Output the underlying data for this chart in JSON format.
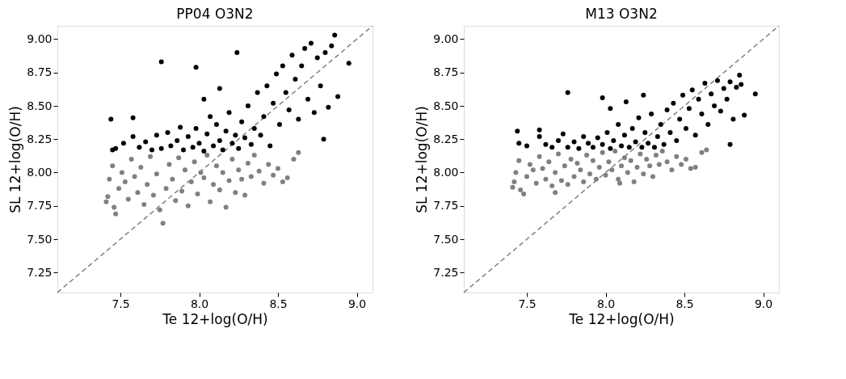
{
  "chart_data": [
    {
      "type": "scatter",
      "title": "PP04 O3N2",
      "xlabel": "Te 12+log(O/H)",
      "ylabel": "SL 12+log(O/H)",
      "marker": "circle",
      "xlim": [
        7.1,
        9.1
      ],
      "ylim": [
        7.1,
        9.1
      ],
      "xticks": [
        {
          "value": 7.5,
          "label": "7.5"
        },
        {
          "value": 8,
          "label": "8.0"
        },
        {
          "value": 8.5,
          "label": "8.5"
        },
        {
          "value": 9,
          "label": "9.0"
        }
      ],
      "yticks": [
        7.25,
        {
          "value": 7.5,
          "label": "7.50"
        },
        7.75,
        {
          "value": 8,
          "label": "8.00"
        },
        8.25,
        {
          "value": 8.5,
          "label": "8.50"
        },
        8.75,
        {
          "value": 9,
          "label": "9.00"
        }
      ],
      "series": [
        {
          "type": "line",
          "color": "#808080",
          "line_style": "dashed",
          "marker": "none",
          "x": [
            7.1,
            9.1
          ],
          "values": [
            7.1,
            9.1
          ]
        },
        {
          "color": "#808080",
          "x": [
            7.41,
            7.42,
            7.43,
            7.45,
            7.46,
            7.47,
            7.49,
            7.51,
            7.53,
            7.55,
            7.57,
            7.59,
            7.61,
            7.63,
            7.65,
            7.67,
            7.69,
            7.71,
            7.73,
            7.75,
            7.77,
            7.79,
            7.81,
            7.83,
            7.85,
            7.87,
            7.89,
            7.91,
            7.93,
            7.95,
            7.97,
            7.99,
            8.01,
            8.03,
            8.05,
            8.07,
            8.09,
            8.11,
            8.13,
            8.15,
            8.17,
            8.19,
            8.21,
            8.23,
            8.25,
            8.27,
            8.29,
            8.31,
            8.33,
            8.35,
            8.38,
            8.41,
            8.44,
            8.47,
            8.5,
            8.53,
            8.56,
            8.6,
            8.63
          ],
          "values": [
            7.78,
            7.82,
            7.95,
            8.05,
            7.74,
            7.69,
            7.88,
            8.0,
            7.93,
            7.8,
            8.1,
            7.97,
            7.85,
            8.04,
            7.76,
            7.91,
            8.12,
            7.83,
            7.99,
            7.72,
            7.62,
            7.88,
            8.06,
            7.95,
            7.79,
            8.11,
            7.86,
            8.02,
            7.75,
            7.93,
            8.08,
            7.84,
            8.0,
            7.96,
            8.13,
            7.78,
            7.91,
            8.05,
            7.87,
            8.0,
            7.74,
            7.94,
            8.1,
            7.85,
            8.02,
            7.95,
            7.83,
            8.07,
            7.97,
            8.13,
            8.01,
            7.92,
            8.06,
            7.98,
            8.03,
            7.93,
            7.96,
            8.1,
            8.15
          ]
        },
        {
          "color": "#000000",
          "x": [
            7.45,
            7.47,
            7.52,
            7.58,
            7.62,
            7.66,
            7.7,
            7.73,
            7.76,
            7.8,
            7.82,
            7.86,
            7.88,
            7.9,
            7.93,
            7.96,
            7.98,
            8.0,
            8.03,
            8.05,
            8.07,
            8.09,
            8.11,
            8.13,
            8.15,
            8.17,
            8.19,
            8.21,
            8.23,
            8.25,
            8.27,
            8.29,
            8.31,
            8.33,
            8.35,
            8.37,
            8.39,
            8.41,
            8.43,
            8.45,
            8.47,
            8.49,
            8.51,
            8.53,
            8.55,
            8.57,
            8.59,
            8.61,
            8.63,
            8.65,
            8.67,
            8.69,
            8.71,
            8.73,
            8.75,
            8.77,
            8.8,
            8.82,
            8.84,
            8.86,
            8.88,
            8.95,
            8.79,
            7.44,
            7.76,
            7.98,
            8.03,
            7.58,
            8.24,
            8.13
          ],
          "values": [
            8.17,
            8.18,
            8.22,
            8.27,
            8.19,
            8.23,
            8.17,
            8.28,
            8.18,
            8.3,
            8.2,
            8.24,
            8.34,
            8.17,
            8.27,
            8.19,
            8.33,
            8.22,
            8.16,
            8.29,
            8.42,
            8.2,
            8.36,
            8.24,
            8.17,
            8.31,
            8.45,
            8.22,
            8.28,
            8.18,
            8.38,
            8.26,
            8.5,
            8.21,
            8.33,
            8.6,
            8.28,
            8.42,
            8.65,
            8.2,
            8.52,
            8.74,
            8.36,
            8.8,
            8.6,
            8.47,
            8.88,
            8.7,
            8.4,
            8.8,
            8.93,
            8.55,
            8.97,
            8.45,
            8.86,
            8.65,
            8.9,
            8.49,
            8.95,
            9.03,
            8.57,
            8.82,
            8.25,
            8.4,
            8.83,
            8.79,
            8.55,
            8.41,
            8.9,
            8.63
          ]
        }
      ]
    },
    {
      "type": "scatter",
      "title": "M13 O3N2",
      "xlabel": "Te 12+log(O/H)",
      "ylabel": "SL 12+log(O/H)",
      "marker": "circle",
      "xlim": [
        7.1,
        9.1
      ],
      "ylim": [
        7.1,
        9.1
      ],
      "xticks": [
        {
          "value": 7.5,
          "label": "7.5"
        },
        {
          "value": 8,
          "label": "8.0"
        },
        {
          "value": 8.5,
          "label": "8.5"
        },
        {
          "value": 9,
          "label": "9.0"
        }
      ],
      "yticks": [
        7.25,
        {
          "value": 7.5,
          "label": "7.50"
        },
        7.75,
        {
          "value": 8,
          "label": "8.00"
        },
        8.25,
        {
          "value": 8.5,
          "label": "8.50"
        },
        8.75,
        {
          "value": 9,
          "label": "9.00"
        }
      ],
      "series": [
        {
          "type": "line",
          "color": "#808080",
          "line_style": "dashed",
          "marker": "none",
          "x": [
            7.1,
            9.1
          ],
          "values": [
            7.1,
            9.1
          ]
        },
        {
          "color": "#808080",
          "x": [
            7.41,
            7.42,
            7.43,
            7.45,
            7.46,
            7.48,
            7.5,
            7.52,
            7.54,
            7.56,
            7.58,
            7.6,
            7.62,
            7.64,
            7.66,
            7.68,
            7.7,
            7.72,
            7.74,
            7.76,
            7.78,
            7.8,
            7.82,
            7.84,
            7.86,
            7.88,
            7.9,
            7.92,
            7.94,
            7.96,
            7.98,
            8.0,
            8.02,
            8.04,
            8.06,
            8.08,
            8.1,
            8.12,
            8.14,
            8.16,
            8.18,
            8.2,
            8.22,
            8.24,
            8.26,
            8.28,
            8.3,
            8.32,
            8.34,
            8.36,
            8.39,
            8.42,
            8.45,
            8.48,
            8.51,
            8.54,
            8.57,
            8.61,
            8.64,
            7.68,
            8.09
          ],
          "values": [
            7.89,
            7.93,
            8.0,
            8.09,
            7.87,
            7.84,
            7.97,
            8.06,
            8.02,
            7.92,
            8.12,
            8.03,
            7.95,
            8.08,
            7.9,
            8.0,
            8.14,
            7.94,
            8.05,
            7.91,
            8.1,
            7.97,
            8.07,
            8.02,
            7.93,
            8.13,
            7.99,
            8.09,
            7.95,
            8.04,
            8.15,
            7.98,
            8.08,
            8.02,
            8.16,
            7.95,
            8.05,
            8.11,
            8.0,
            8.09,
            7.93,
            8.04,
            8.14,
            7.99,
            8.1,
            8.05,
            7.97,
            8.13,
            8.06,
            8.16,
            8.08,
            8.02,
            8.12,
            8.06,
            8.1,
            8.03,
            8.04,
            8.15,
            8.17,
            7.85,
            7.92
          ]
        },
        {
          "color": "#000000",
          "x": [
            7.45,
            7.5,
            7.58,
            7.62,
            7.66,
            7.7,
            7.73,
            7.76,
            7.8,
            7.83,
            7.86,
            7.89,
            7.92,
            7.95,
            7.98,
            8.01,
            8.03,
            8.05,
            8.08,
            8.1,
            8.12,
            8.15,
            8.17,
            8.19,
            8.21,
            8.23,
            8.25,
            8.27,
            8.29,
            8.31,
            8.33,
            8.35,
            8.37,
            8.39,
            8.41,
            8.43,
            8.45,
            8.47,
            8.49,
            8.51,
            8.53,
            8.55,
            8.57,
            8.59,
            8.61,
            8.63,
            8.65,
            8.67,
            8.69,
            8.71,
            8.73,
            8.75,
            8.77,
            8.79,
            8.81,
            8.83,
            8.85,
            8.86,
            8.95,
            8.88,
            8.79,
            7.44,
            7.76,
            7.98,
            8.03,
            7.58,
            8.13,
            8.24
          ],
          "values": [
            8.22,
            8.2,
            8.27,
            8.21,
            8.19,
            8.24,
            8.29,
            8.19,
            8.23,
            8.18,
            8.27,
            8.22,
            8.19,
            8.26,
            8.21,
            8.3,
            8.18,
            8.24,
            8.36,
            8.2,
            8.28,
            8.19,
            8.33,
            8.23,
            8.41,
            8.19,
            8.3,
            8.22,
            8.44,
            8.19,
            8.27,
            8.36,
            8.21,
            8.47,
            8.3,
            8.52,
            8.24,
            8.4,
            8.58,
            8.33,
            8.48,
            8.62,
            8.28,
            8.55,
            8.44,
            8.67,
            8.36,
            8.59,
            8.5,
            8.69,
            8.46,
            8.63,
            8.55,
            8.68,
            8.4,
            8.64,
            8.73,
            8.66,
            8.59,
            8.43,
            8.21,
            8.31,
            8.6,
            8.56,
            8.48,
            8.32,
            8.53,
            8.58
          ]
        }
      ]
    }
  ]
}
